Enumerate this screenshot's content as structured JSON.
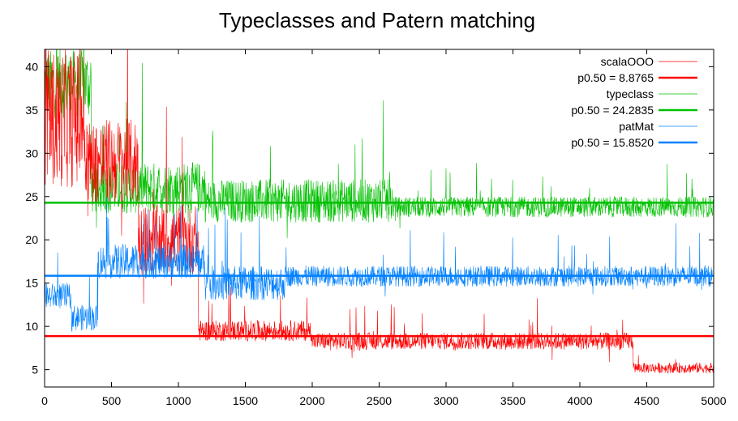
{
  "chart_data": {
    "type": "line",
    "title": "Typeclasses and Patern matching",
    "xlabel": "",
    "ylabel": "",
    "xlim": [
      0,
      5000
    ],
    "ylim": [
      3,
      42
    ],
    "x_ticks": [
      0,
      500,
      1000,
      1500,
      2000,
      2500,
      3000,
      3500,
      4000,
      4500,
      5000
    ],
    "y_ticks": [
      5,
      10,
      15,
      20,
      25,
      30,
      35,
      40
    ],
    "grid": false,
    "legend_position": "top-right",
    "series": [
      {
        "name": "scalaOOO",
        "color": "#ff0000",
        "median_label": "p0.50 = 8.8765",
        "median": 8.8765,
        "segments": [
          {
            "from": 0,
            "to": 300,
            "level": 34,
            "noise": 8
          },
          {
            "from": 300,
            "to": 700,
            "level": 29,
            "noise": 5
          },
          {
            "from": 700,
            "to": 1150,
            "level": 20,
            "noise": 4
          },
          {
            "from": 1150,
            "to": 2000,
            "level": 9.5,
            "noise": 1.2
          },
          {
            "from": 2000,
            "to": 4400,
            "level": 8.3,
            "noise": 1.0
          },
          {
            "from": 4400,
            "to": 5000,
            "level": 5.2,
            "noise": 0.6
          }
        ]
      },
      {
        "name": "typeclass",
        "color": "#00c000",
        "median_label": "p0.50 = 24.2835",
        "median": 24.2835,
        "segments": [
          {
            "from": 0,
            "to": 350,
            "level": 38,
            "noise": 4
          },
          {
            "from": 350,
            "to": 1200,
            "level": 26,
            "noise": 3
          },
          {
            "from": 1200,
            "to": 2600,
            "level": 24.5,
            "noise": 2.5
          },
          {
            "from": 2600,
            "to": 5000,
            "level": 23.8,
            "noise": 1.2
          }
        ]
      },
      {
        "name": "patMat",
        "color": "#0080ff",
        "median_label": "p0.50 = 15.8520",
        "median": 15.852,
        "segments": [
          {
            "from": 0,
            "to": 200,
            "level": 13.5,
            "noise": 1.5
          },
          {
            "from": 200,
            "to": 400,
            "level": 11,
            "noise": 1.5
          },
          {
            "from": 400,
            "to": 1200,
            "level": 17.5,
            "noise": 2
          },
          {
            "from": 1200,
            "to": 1800,
            "level": 15,
            "noise": 2
          },
          {
            "from": 1800,
            "to": 5000,
            "level": 15.8,
            "noise": 1.2
          }
        ]
      }
    ]
  }
}
